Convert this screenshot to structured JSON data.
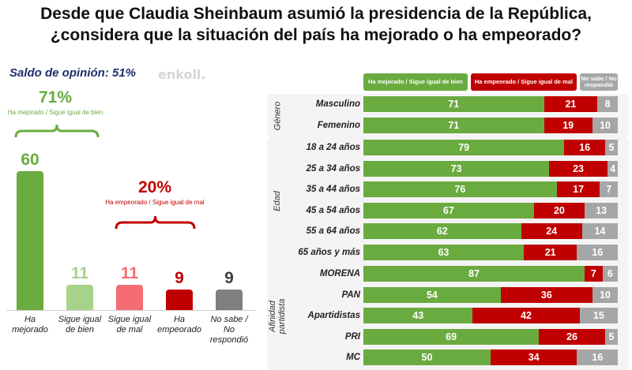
{
  "title_line1": "Desde que Claudia Sheinbaum asumió la presidencia de la República,",
  "title_line2": "¿considera que la situación del país ha mejorado o ha empeorado?",
  "watermark": "enkoll.",
  "colors": {
    "green": "#6aab3f",
    "light_green": "#a6d28a",
    "pink": "#f46d75",
    "red": "#c00000",
    "gray": "#a6a6a6",
    "dark_gray": "#7f7f7f",
    "navy": "#1f2e6b"
  },
  "chart_data": [
    {
      "type": "bar",
      "title": "Saldo de opinión: 51%",
      "saldo_label": "Saldo de opinión: 51%",
      "categories": [
        "Ha mejorado",
        "Sigue igual de bien",
        "Sigue igual de mal",
        "Ha empeorado",
        "No sabe / No respondió"
      ],
      "category_lines": [
        [
          "Ha",
          "mejorado"
        ],
        [
          "Sigue igual",
          "de bien"
        ],
        [
          "Sigue igual",
          "de mal"
        ],
        [
          "Ha",
          "empeorado"
        ],
        [
          "No sabe /",
          "No",
          "respondió"
        ]
      ],
      "values": [
        60,
        11,
        11,
        9,
        9
      ],
      "colors": [
        "#6aab3f",
        "#a6d28a",
        "#f46d75",
        "#c00000",
        "#7f7f7f"
      ],
      "label_colors": [
        "#6aab3f",
        "#a6d28a",
        "#f46d75",
        "#c00000",
        "#404040"
      ],
      "annotations": [
        {
          "value": "71%",
          "text": "Ha mejorado / Sigue igual de bien",
          "color": "#6aab3f",
          "spans": [
            "Ha mejorado",
            "Sigue igual de bien"
          ]
        },
        {
          "value": "20%",
          "text": "Ha empeorado / Sigue igual de mal",
          "color": "#c00000",
          "spans": [
            "Sigue igual de mal",
            "Ha empeorado"
          ]
        }
      ],
      "ylim": [
        0,
        60
      ]
    },
    {
      "type": "bar",
      "orientation": "horizontal-stacked",
      "legend": [
        {
          "name": "Ha mejorado / Sigue igual de bien",
          "color": "#6aab3f"
        },
        {
          "name": "Ha empeorado / Sigue igual de mal",
          "color": "#c00000"
        },
        {
          "name": "No sabe / No respondió",
          "color": "#a6a6a6",
          "lines": [
            "No sabe / No",
            "respondió"
          ]
        }
      ],
      "legend_position": "top",
      "groups": [
        {
          "name": "Género",
          "lines": [
            "Género"
          ],
          "rows": [
            {
              "label": "Masculino",
              "values": [
                71,
                21,
                8
              ]
            },
            {
              "label": "Femenino",
              "values": [
                71,
                19,
                10
              ]
            }
          ]
        },
        {
          "name": "Edad",
          "lines": [
            "Edad"
          ],
          "rows": [
            {
              "label": "18 a 24 años",
              "values": [
                79,
                16,
                5
              ]
            },
            {
              "label": "25 a 34 años",
              "values": [
                73,
                23,
                4
              ]
            },
            {
              "label": "35 a 44 años",
              "values": [
                76,
                17,
                7
              ]
            },
            {
              "label": "45 a 54 años",
              "values": [
                67,
                20,
                13
              ]
            },
            {
              "label": "55 a 64 años",
              "values": [
                62,
                24,
                14
              ]
            },
            {
              "label": "65 años y más",
              "values": [
                63,
                21,
                16
              ]
            }
          ]
        },
        {
          "name": "Afinidad partidista",
          "lines": [
            "Afinidad",
            "partidista"
          ],
          "rows": [
            {
              "label": "MORENA",
              "values": [
                87,
                7,
                6
              ]
            },
            {
              "label": "PAN",
              "values": [
                54,
                36,
                10
              ]
            },
            {
              "label": "Apartidistas",
              "values": [
                43,
                42,
                15
              ]
            },
            {
              "label": "PRI",
              "values": [
                69,
                26,
                5
              ]
            },
            {
              "label": "MC",
              "values": [
                50,
                34,
                16
              ]
            }
          ]
        }
      ],
      "xlim": [
        0,
        100
      ]
    }
  ]
}
